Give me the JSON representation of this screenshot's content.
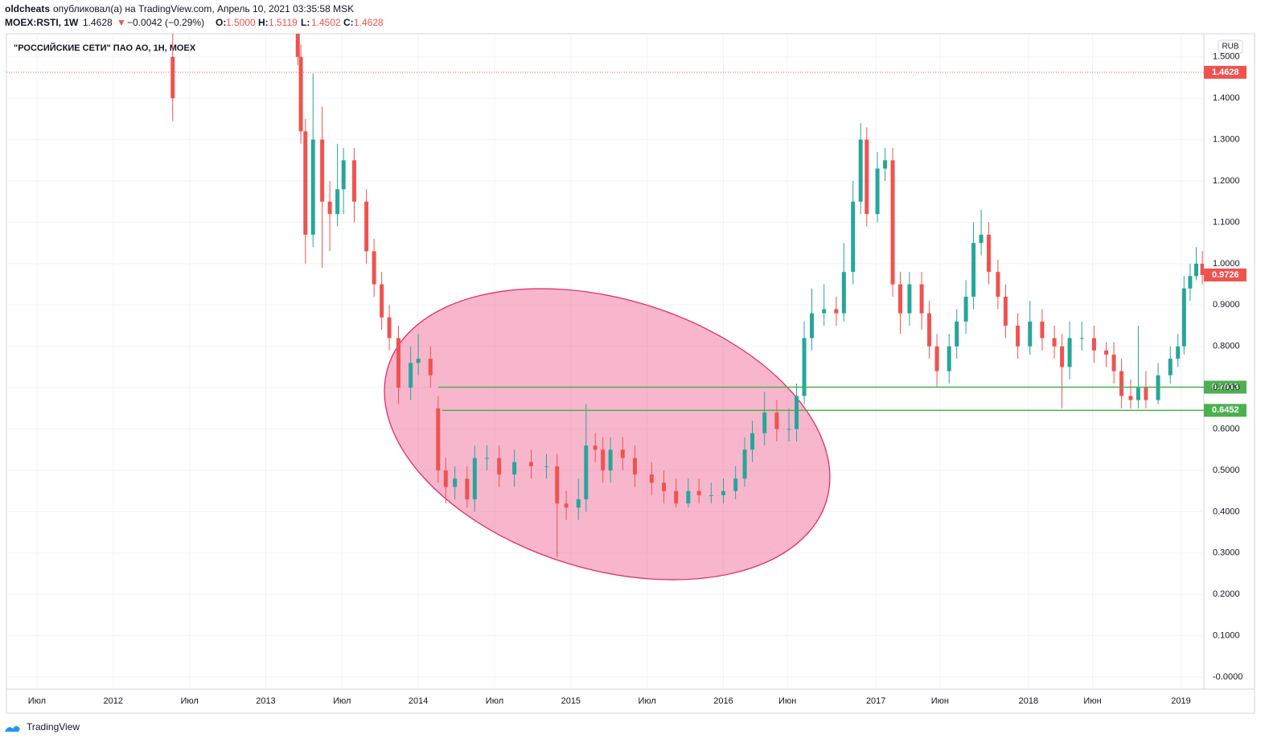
{
  "header": {
    "author": "oldcheats",
    "published": "опубликовал(а) на TradingView.com, Апрель 10, 2021 03:35:58 MSK",
    "symbol": "MOEX:RSTI, 1W",
    "last": "1.4628",
    "arrow": "▼",
    "change": "−0.0042 (−0.29%)",
    "ohlc": [
      {
        "label": "O:",
        "value": "1.5000"
      },
      {
        "label": "H:",
        "value": "1.5119"
      },
      {
        "label": "L:",
        "value": "1.4502"
      },
      {
        "label": "C:",
        "value": "1.4628"
      }
    ]
  },
  "footer": {
    "brand": "TradingView"
  },
  "chart_data": {
    "type": "candlestick",
    "title": "\"РОССИЙСКИЕ СЕТИ\" ПАО АО, 1Н, MOEX",
    "currency": "RUB",
    "up_color": "#26a69a",
    "down_color": "#ef5350",
    "grid": true,
    "xlim": [
      2011.3,
      2019.15
    ],
    "xticks": [
      {
        "value": 2011.5,
        "label": "Июл"
      },
      2012,
      {
        "value": 2012.5,
        "label": "Июл"
      },
      2013,
      {
        "value": 2013.5,
        "label": "Июл"
      },
      2014,
      {
        "value": 2014.5,
        "label": "Июл"
      },
      2015,
      {
        "value": 2015.5,
        "label": "Июл"
      },
      2016,
      {
        "value": 2016.42,
        "label": "Июн"
      },
      2017,
      {
        "value": 2017.42,
        "label": "Июн"
      },
      2018,
      {
        "value": 2018.42,
        "label": "Июн"
      },
      2019
    ],
    "ylim": [
      -0.029,
      1.556
    ],
    "yticks": [
      {
        "value": 0,
        "label": "-0.0000"
      },
      {
        "value": 0.1,
        "label": "0.1000"
      },
      {
        "value": 0.2,
        "label": "0.2000"
      },
      {
        "value": 0.3,
        "label": "0.3000"
      },
      {
        "value": 0.4,
        "label": "0.4000"
      },
      {
        "value": 0.5,
        "label": "0.5000"
      },
      {
        "value": 0.6,
        "label": "0.6000"
      },
      {
        "value": 0.7,
        "label": "0.7000"
      },
      {
        "value": 0.8,
        "label": "0.8000"
      },
      {
        "value": 0.9,
        "label": "0.9000"
      },
      {
        "value": 1.0,
        "label": "1.0000"
      },
      {
        "value": 1.1,
        "label": "1.1000"
      },
      {
        "value": 1.2,
        "label": "1.2000"
      },
      {
        "value": 1.3,
        "label": "1.3000"
      },
      {
        "value": 1.4,
        "label": "1.4000"
      },
      {
        "value": 1.5,
        "label": "1.5000"
      }
    ],
    "x": [
      2012.39,
      2013.21,
      2013.23,
      2013.26,
      2013.31,
      2013.37,
      2013.42,
      2013.47,
      2013.51,
      2013.58,
      2013.66,
      2013.71,
      2013.76,
      2013.81,
      2013.87,
      2013.95,
      2014.0,
      2014.08,
      2014.13,
      2014.18,
      2014.24,
      2014.32,
      2014.37,
      2014.45,
      2014.53,
      2014.63,
      2014.74,
      2014.84,
      2014.91,
      2014.97,
      2015.05,
      2015.1,
      2015.16,
      2015.21,
      2015.26,
      2015.34,
      2015.42,
      2015.53,
      2015.61,
      2015.69,
      2015.77,
      2015.84,
      2015.92,
      2016.0,
      2016.08,
      2016.14,
      2016.19,
      2016.27,
      2016.35,
      2016.43,
      2016.48,
      2016.53,
      2016.58,
      2016.66,
      2016.74,
      2016.79,
      2016.85,
      2016.9,
      2016.94,
      2017.01,
      2017.06,
      2017.11,
      2017.16,
      2017.22,
      2017.3,
      2017.35,
      2017.4,
      2017.48,
      2017.53,
      2017.59,
      2017.64,
      2017.69,
      2017.74,
      2017.8,
      2017.85,
      2017.93,
      2018.01,
      2018.09,
      2018.17,
      2018.22,
      2018.27,
      2018.35,
      2018.43,
      2018.51,
      2018.56,
      2018.61,
      2018.67,
      2018.72,
      2018.77,
      2018.85,
      2018.93,
      2018.98,
      2019.02,
      2019.06,
      2019.1,
      2019.14
    ],
    "open": [
      1.5,
      1.58,
      1.5,
      1.32,
      1.07,
      1.3,
      1.15,
      1.12,
      1.18,
      1.25,
      1.15,
      1.03,
      0.95,
      0.87,
      0.82,
      0.7,
      0.76,
      0.77,
      0.65,
      0.5,
      0.46,
      0.48,
      0.43,
      0.53,
      0.53,
      0.49,
      0.52,
      0.51,
      0.51,
      0.42,
      0.41,
      0.43,
      0.56,
      0.55,
      0.5,
      0.55,
      0.53,
      0.49,
      0.47,
      0.45,
      0.42,
      0.45,
      0.44,
      0.44,
      0.45,
      0.48,
      0.55,
      0.59,
      0.64,
      0.6,
      0.6,
      0.68,
      0.82,
      0.88,
      0.89,
      0.88,
      0.98,
      1.15,
      1.3,
      1.12,
      1.23,
      1.25,
      0.95,
      0.88,
      0.95,
      0.88,
      0.8,
      0.74,
      0.8,
      0.86,
      0.92,
      1.05,
      1.07,
      0.98,
      0.92,
      0.85,
      0.8,
      0.86,
      0.82,
      0.8,
      0.75,
      0.82,
      0.82,
      0.79,
      0.78,
      0.74,
      0.68,
      0.67,
      0.7,
      0.67,
      0.73,
      0.77,
      0.8,
      0.94,
      0.97,
      1.0
    ],
    "high": [
      1.6,
      1.6,
      1.53,
      1.35,
      1.46,
      1.38,
      1.2,
      1.29,
      1.28,
      1.28,
      1.18,
      1.06,
      0.98,
      0.9,
      0.85,
      0.8,
      0.83,
      0.8,
      0.68,
      0.53,
      0.51,
      0.51,
      0.56,
      0.56,
      0.56,
      0.55,
      0.55,
      0.54,
      0.54,
      0.45,
      0.48,
      0.66,
      0.59,
      0.58,
      0.58,
      0.58,
      0.56,
      0.52,
      0.5,
      0.48,
      0.48,
      0.48,
      0.47,
      0.48,
      0.51,
      0.58,
      0.62,
      0.69,
      0.67,
      0.65,
      0.71,
      0.86,
      0.94,
      0.95,
      0.92,
      1.05,
      1.2,
      1.34,
      1.33,
      1.27,
      1.28,
      1.28,
      0.98,
      0.98,
      0.98,
      0.91,
      0.83,
      0.83,
      0.89,
      0.96,
      1.1,
      1.13,
      1.1,
      1.01,
      0.95,
      0.88,
      0.91,
      0.89,
      0.85,
      0.83,
      0.86,
      0.86,
      0.85,
      0.81,
      0.81,
      0.77,
      0.72,
      0.85,
      0.74,
      0.76,
      0.8,
      0.83,
      0.97,
      1.0,
      1.04,
      1.03
    ],
    "low": [
      1.345,
      1.48,
      1.29,
      1.0,
      1.04,
      0.99,
      1.03,
      1.09,
      1.12,
      1.1,
      1.0,
      0.92,
      0.84,
      0.79,
      0.66,
      0.67,
      0.73,
      0.7,
      0.47,
      0.42,
      0.43,
      0.41,
      0.4,
      0.5,
      0.46,
      0.46,
      0.48,
      0.48,
      0.29,
      0.38,
      0.38,
      0.4,
      0.52,
      0.47,
      0.47,
      0.5,
      0.46,
      0.44,
      0.42,
      0.41,
      0.41,
      0.42,
      0.42,
      0.42,
      0.43,
      0.46,
      0.52,
      0.56,
      0.57,
      0.57,
      0.57,
      0.66,
      0.79,
      0.85,
      0.85,
      0.86,
      0.95,
      1.12,
      1.09,
      1.1,
      1.2,
      0.92,
      0.83,
      0.85,
      0.84,
      0.77,
      0.7,
      0.71,
      0.77,
      0.83,
      0.89,
      1.02,
      0.95,
      0.89,
      0.82,
      0.77,
      0.78,
      0.79,
      0.77,
      0.65,
      0.72,
      0.79,
      0.76,
      0.75,
      0.71,
      0.65,
      0.65,
      0.65,
      0.65,
      0.66,
      0.71,
      0.75,
      0.78,
      0.91,
      0.96,
      0.95
    ],
    "close": [
      1.4,
      1.5,
      1.32,
      1.07,
      1.3,
      1.15,
      1.12,
      1.18,
      1.25,
      1.15,
      1.03,
      0.95,
      0.87,
      0.82,
      0.7,
      0.76,
      0.77,
      0.73,
      0.5,
      0.46,
      0.48,
      0.43,
      0.53,
      0.53,
      0.49,
      0.52,
      0.51,
      0.51,
      0.42,
      0.41,
      0.43,
      0.56,
      0.55,
      0.5,
      0.55,
      0.53,
      0.49,
      0.47,
      0.45,
      0.42,
      0.45,
      0.44,
      0.44,
      0.45,
      0.48,
      0.55,
      0.59,
      0.64,
      0.6,
      0.6,
      0.68,
      0.82,
      0.88,
      0.89,
      0.88,
      0.98,
      1.15,
      1.3,
      1.12,
      1.23,
      1.25,
      0.95,
      0.88,
      0.95,
      0.88,
      0.8,
      0.74,
      0.8,
      0.86,
      0.92,
      1.05,
      1.07,
      0.98,
      0.92,
      0.85,
      0.8,
      0.86,
      0.82,
      0.8,
      0.75,
      0.82,
      0.82,
      0.79,
      0.78,
      0.74,
      0.68,
      0.67,
      0.7,
      0.67,
      0.73,
      0.77,
      0.8,
      0.94,
      0.97,
      1.0,
      0.9726
    ],
    "price_markers": [
      {
        "value": 1.4628,
        "color": "#ef5350",
        "line": "dotted"
      },
      {
        "value": 0.9726,
        "color": "#ef5350"
      },
      {
        "value": 0.7013,
        "color": "#4caf50",
        "line": "solid"
      },
      {
        "value": 0.6452,
        "color": "#4caf50",
        "line": "solid"
      }
    ]
  }
}
